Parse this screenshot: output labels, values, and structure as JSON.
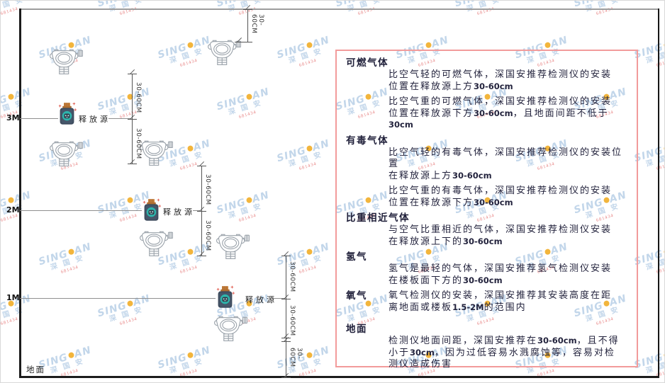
{
  "watermark": {
    "brand_left": "SING",
    "brand_right": "AN",
    "cn": "深 国 安",
    "sub": "681434",
    "brand_color": "#c2d6ea",
    "dot_color": "#f2b53c",
    "sub_color": "#e78080"
  },
  "diagram": {
    "axis_labels": [
      "3M",
      "2M",
      "1M"
    ],
    "ground_label": "地面",
    "release_label": "释放源",
    "dim_label": "30-60CM"
  },
  "panel": {
    "border_color": "#f29b9b",
    "sections": [
      {
        "heading": "可燃气体",
        "inline": false,
        "paragraphs": [
          [
            "比空气轻的可燃气体，深国安推荐检测仪的安装",
            "位置在释放源上方30-60cm"
          ],
          [
            "比空气重的可燃气体，深国安推荐检测仪的安装",
            "位置在释放源下方30-60cm，且地面间距不低于",
            "30cm"
          ]
        ]
      },
      {
        "heading": "有毒气体",
        "inline": false,
        "paragraphs": [
          [
            "比空气轻的有毒气体，深国安推荐检测仪的安装位置",
            "在释放源上方30-60cm"
          ],
          [
            "比空气重的有毒气体，深国安推荐检测仪的安装",
            "位置在释放源下方30-60cm"
          ]
        ]
      },
      {
        "heading": "比重相近气体",
        "inline": false,
        "paragraphs": [
          [
            "与空气比重相近的气体，深国安推荐检测仪安装",
            "在释放源上下的30-60cm"
          ]
        ]
      },
      {
        "heading": "氢气",
        "inline": false,
        "paragraphs": [
          [
            "氢气是最轻的气体，深国安推荐氢气检测仪安装",
            "在楼板面下方的30-60cm"
          ]
        ]
      },
      {
        "heading": "氧气",
        "inline": true,
        "paragraphs": [
          [
            "氧气检测仪的安装，深国安推荐其安装高度在距",
            "离地面或楼板1.5-2M的范围内"
          ]
        ]
      },
      {
        "heading": "地面",
        "inline": false,
        "gap_before": true,
        "paragraphs": [
          [
            "检测仪地面间距，深国安推荐在30-60cm，且不得",
            "小于30cm，因为过低容易水溅腐蚀等，容易对检",
            "测仪造成伤害"
          ]
        ]
      }
    ]
  }
}
